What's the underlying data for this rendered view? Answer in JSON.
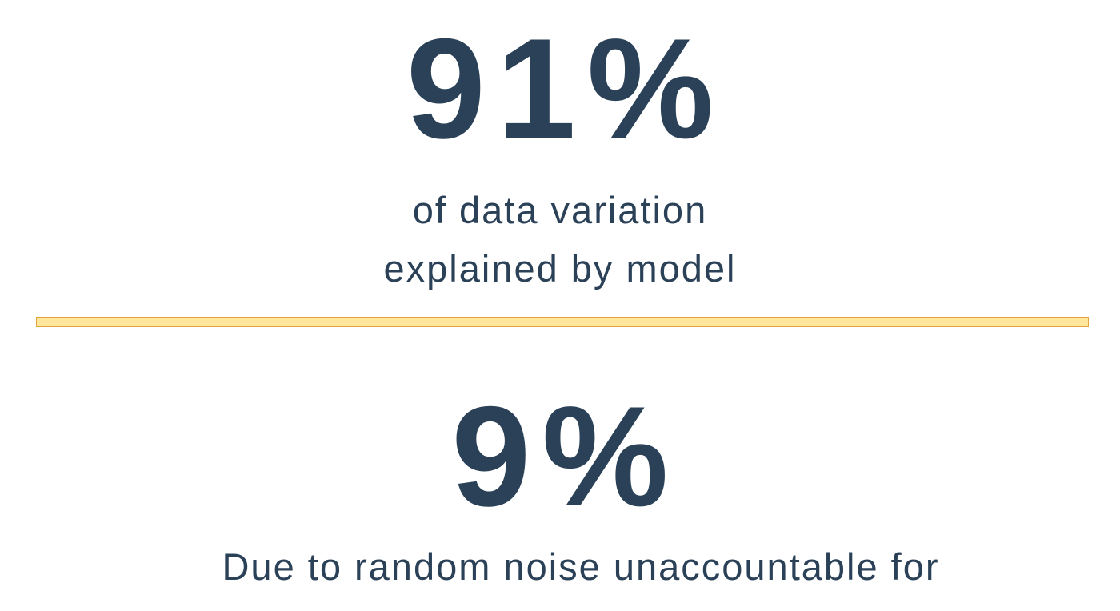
{
  "top_stat": {
    "value": "91%",
    "caption_line1": "of data variation",
    "caption_line2": "explained by model"
  },
  "bottom_stat": {
    "value": "9%",
    "caption": "Due to random noise unaccountable for"
  },
  "colors": {
    "text": "#2a4158",
    "divider_fill": "#fee79c",
    "divider_border": "#e4a43a",
    "background": "#ffffff"
  }
}
